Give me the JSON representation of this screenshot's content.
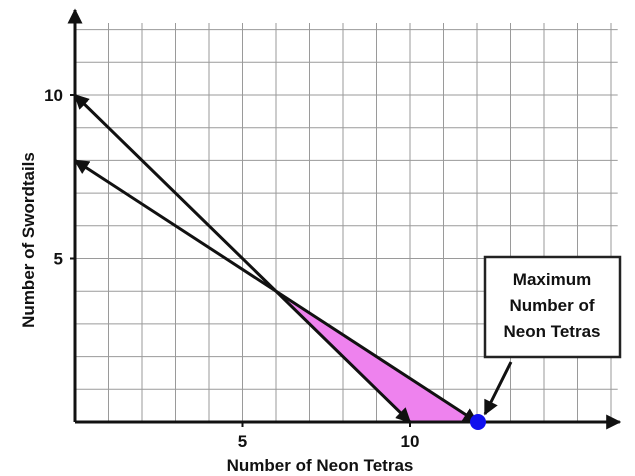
{
  "chart_data": {
    "type": "line",
    "title": "",
    "xlabel": "Number of Neon Tetras",
    "ylabel": "Number of Swordtails",
    "xlim": [
      0,
      16.2
    ],
    "ylim": [
      0,
      12.2
    ],
    "x_ticks": [
      {
        "value": 5,
        "label": "5"
      },
      {
        "value": 10,
        "label": "10"
      }
    ],
    "y_ticks": [
      {
        "value": 5,
        "label": "5"
      },
      {
        "value": 10,
        "label": "10"
      }
    ],
    "grid": true,
    "grid_step": 1,
    "series": [
      {
        "points": [
          [
            0,
            10
          ],
          [
            10,
            0
          ]
        ],
        "arrows_both_ends": true
      },
      {
        "points": [
          [
            0,
            8
          ],
          [
            12,
            0
          ]
        ],
        "arrows_both_ends": true
      }
    ],
    "shaded_region": {
      "vertices": [
        [
          6,
          4
        ],
        [
          12,
          0
        ],
        [
          10,
          0
        ]
      ],
      "color": "#ee82ee"
    },
    "highlight_point": {
      "x": 12,
      "y": 0,
      "color": "#1010ee"
    },
    "annotation": {
      "lines": [
        "Maximum",
        "Number of",
        "Neon Tetras"
      ],
      "points_to": [
        12,
        0
      ]
    }
  }
}
